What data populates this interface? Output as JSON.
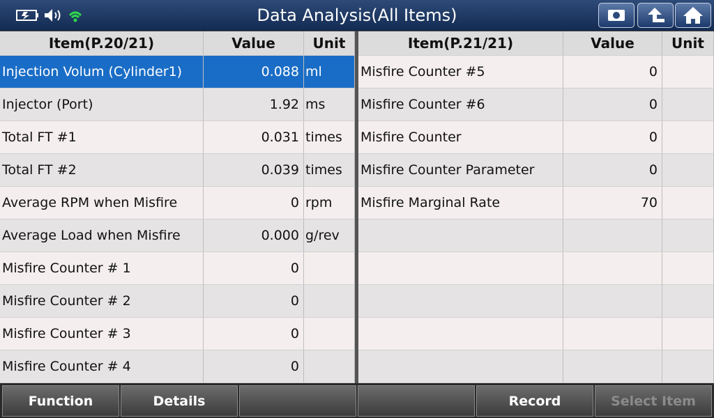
{
  "header": {
    "title": "Data Analysis(All Items)"
  },
  "left_table": {
    "columns": [
      "Item(P.20/21)",
      "Value",
      "Unit"
    ],
    "rows": [
      {
        "item": "Injection Volum (Cylinder1)",
        "value": "0.088",
        "unit": "ml"
      },
      {
        "item": "Injector (Port)",
        "value": "1.92",
        "unit": "ms"
      },
      {
        "item": "Total FT #1",
        "value": "0.031",
        "unit": "times"
      },
      {
        "item": "Total FT #2",
        "value": "0.039",
        "unit": "times"
      },
      {
        "item": "Average RPM when Misfire",
        "value": "0",
        "unit": "rpm"
      },
      {
        "item": "Average Load when Misfire",
        "value": "0.000",
        "unit": "g/rev"
      },
      {
        "item": "Misfire Counter # 1",
        "value": "0"
      },
      {
        "item": "Misfire Counter # 2",
        "value": "0"
      },
      {
        "item": "Misfire Counter # 3",
        "value": "0"
      },
      {
        "item": "Misfire Counter # 4",
        "value": "0"
      }
    ]
  },
  "right_table": {
    "columns": [
      "Item(P.21/21)",
      "Value",
      "Unit"
    ],
    "rows": [
      {
        "item": "Misfire Counter #5",
        "value": "0"
      },
      {
        "item": "Misfire Counter #6",
        "value": "0"
      },
      {
        "item": "Misfire Counter",
        "value": "0"
      },
      {
        "item": "Misfire Counter Parameter",
        "value": "0"
      },
      {
        "item": "Misfire Marginal Rate",
        "value": "70"
      }
    ]
  },
  "footer": {
    "buttons": [
      "Function",
      "Details",
      "Record",
      "Select Item"
    ]
  }
}
